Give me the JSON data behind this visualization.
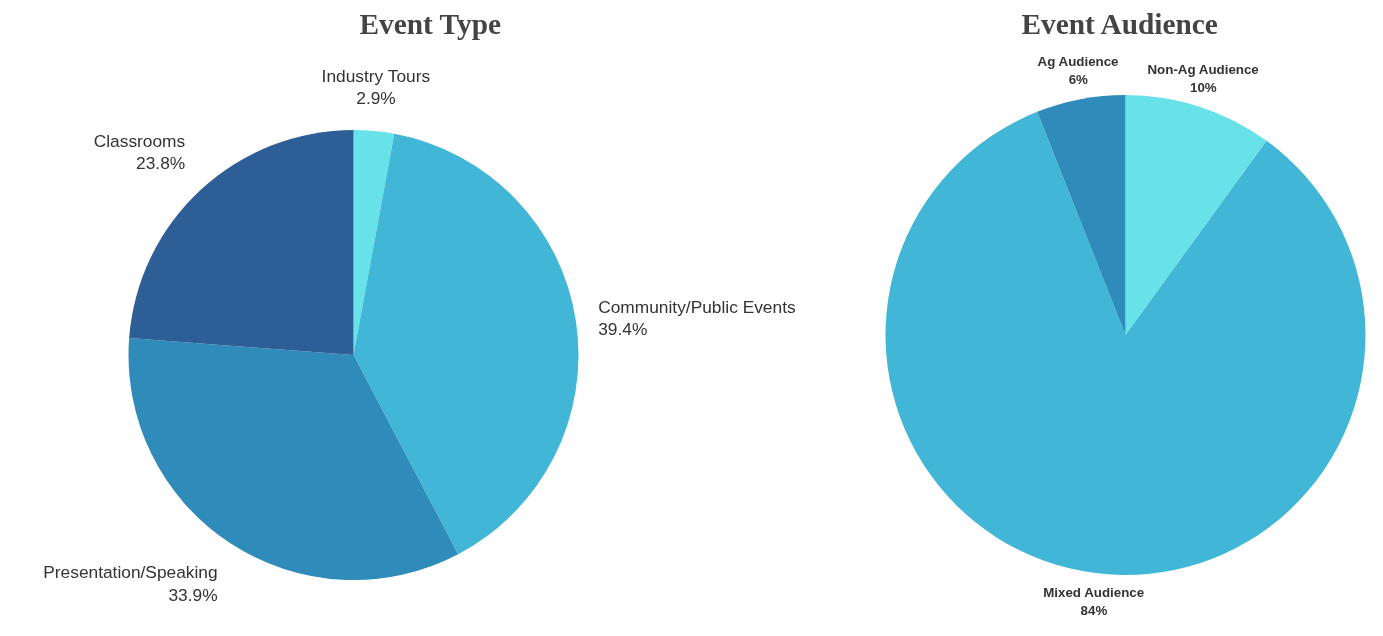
{
  "chart_data": [
    {
      "type": "pie",
      "title": "Event Type",
      "categories": [
        "Industry Tours",
        "Community/Public Events",
        "Presentation/Speaking",
        "Classrooms"
      ],
      "values": [
        2.9,
        39.4,
        33.9,
        23.8
      ],
      "value_labels": [
        "2.9%",
        "39.4%",
        "33.9%",
        "23.8%"
      ],
      "colors": [
        "#67e2e8",
        "#42b6d6",
        "#2e8bba",
        "#2d5e96"
      ]
    },
    {
      "type": "pie",
      "title": "Event Audience",
      "categories": [
        "Non-Ag Audience",
        "Mixed Audience",
        "Ag Audience"
      ],
      "values": [
        10,
        84,
        6
      ],
      "value_labels": [
        "10%",
        "84%",
        "6%"
      ],
      "colors": [
        "#67e2e8",
        "#42b6d6",
        "#2e8bba"
      ]
    }
  ]
}
